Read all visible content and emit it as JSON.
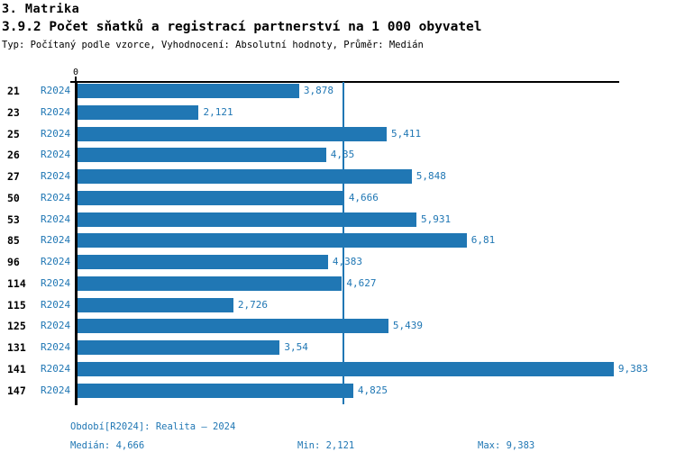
{
  "header": {
    "section_title": "3. Matrika",
    "chart_title": "3.9.2 Počet sňatků a registrací partnerství na 1 000 obyvatel",
    "meta": "Typ: Počítaný podle vzorce, Vyhodnocení: Absolutní hodnoty, Průměr: Medián"
  },
  "axis": {
    "zero_label": "0"
  },
  "chart_data": {
    "type": "bar",
    "orientation": "horizontal",
    "title": "3.9.2 Počet sňatků a registrací partnerství na 1 000 obyvatel",
    "series_label": "R2024",
    "categories": [
      "21",
      "23",
      "25",
      "26",
      "27",
      "50",
      "53",
      "85",
      "96",
      "114",
      "115",
      "125",
      "131",
      "141",
      "147"
    ],
    "values": [
      3.878,
      2.121,
      5.411,
      4.35,
      5.848,
      4.666,
      5.931,
      6.81,
      4.383,
      4.627,
      2.726,
      5.439,
      3.54,
      9.383,
      4.825
    ],
    "value_labels": [
      "3,878",
      "2,121",
      "5,411",
      "4,35",
      "5,848",
      "4,666",
      "5,931",
      "6,81",
      "4,383",
      "4,627",
      "2,726",
      "5,439",
      "3,54",
      "9,383",
      "4,825"
    ],
    "median": 4.666,
    "min": 2.121,
    "max": 9.383,
    "xlim": [
      0,
      9.5
    ],
    "grid": false,
    "bar_color": "#2077b4",
    "median_line_color": "#2077b4"
  },
  "footer": {
    "period": "Období[R2024]: Realita – 2024",
    "median": "Medián: 4,666",
    "min": "Min: 2,121",
    "max": "Max: 9,383"
  }
}
